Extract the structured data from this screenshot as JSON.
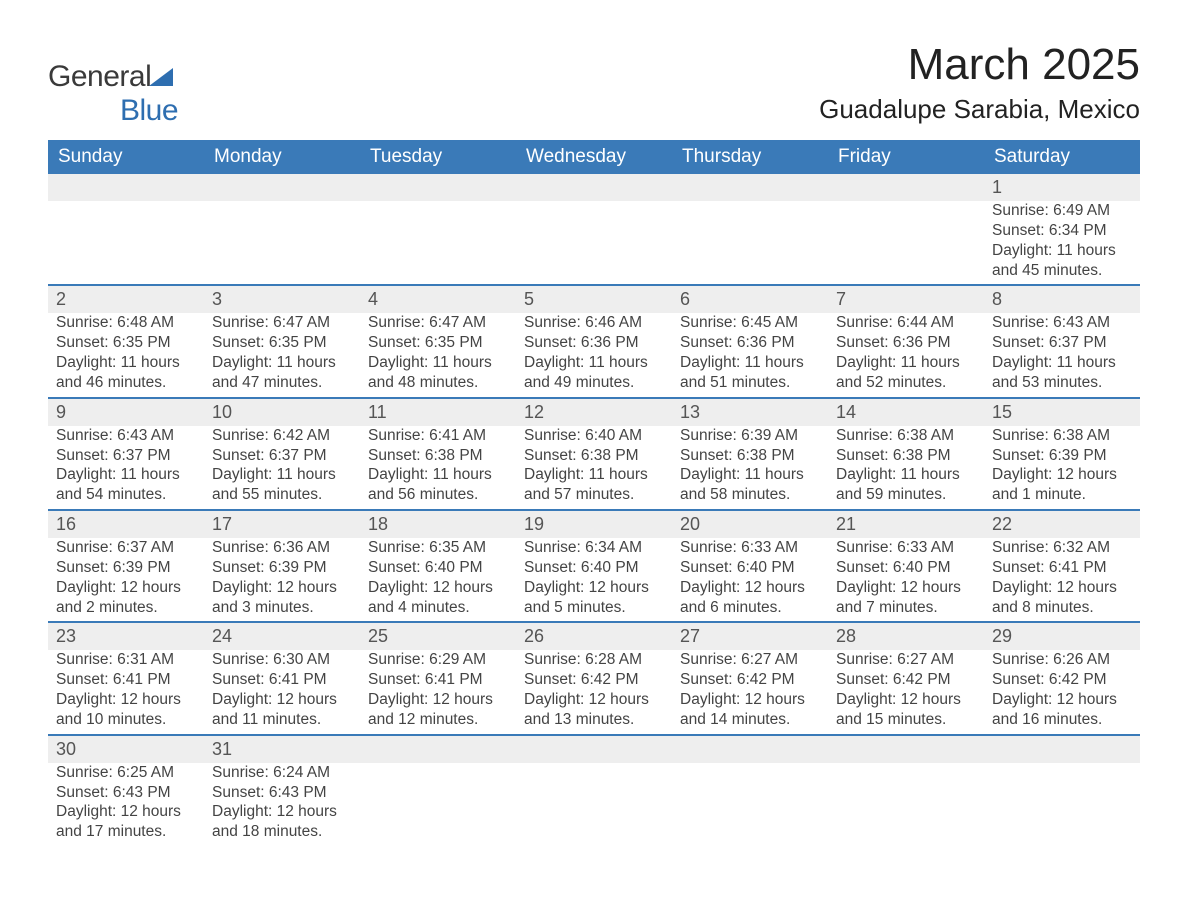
{
  "logo": {
    "general": "General",
    "blue": "Blue"
  },
  "title": {
    "month": "March 2025",
    "location": "Guadalupe Sarabia, Mexico"
  },
  "calendar": {
    "header_bg": "#3a7ab8",
    "header_text_color": "#ffffff",
    "daynum_bg": "#eeeeee",
    "row_divider_color": "#3a7ab8",
    "body_bg": "#ffffff",
    "text_color": "#444444",
    "columns": [
      "Sunday",
      "Monday",
      "Tuesday",
      "Wednesday",
      "Thursday",
      "Friday",
      "Saturday"
    ],
    "weeks": [
      [
        null,
        null,
        null,
        null,
        null,
        null,
        {
          "n": "1",
          "sr": "Sunrise: 6:49 AM",
          "ss": "Sunset: 6:34 PM",
          "d1": "Daylight: 11 hours",
          "d2": "and 45 minutes."
        }
      ],
      [
        {
          "n": "2",
          "sr": "Sunrise: 6:48 AM",
          "ss": "Sunset: 6:35 PM",
          "d1": "Daylight: 11 hours",
          "d2": "and 46 minutes."
        },
        {
          "n": "3",
          "sr": "Sunrise: 6:47 AM",
          "ss": "Sunset: 6:35 PM",
          "d1": "Daylight: 11 hours",
          "d2": "and 47 minutes."
        },
        {
          "n": "4",
          "sr": "Sunrise: 6:47 AM",
          "ss": "Sunset: 6:35 PM",
          "d1": "Daylight: 11 hours",
          "d2": "and 48 minutes."
        },
        {
          "n": "5",
          "sr": "Sunrise: 6:46 AM",
          "ss": "Sunset: 6:36 PM",
          "d1": "Daylight: 11 hours",
          "d2": "and 49 minutes."
        },
        {
          "n": "6",
          "sr": "Sunrise: 6:45 AM",
          "ss": "Sunset: 6:36 PM",
          "d1": "Daylight: 11 hours",
          "d2": "and 51 minutes."
        },
        {
          "n": "7",
          "sr": "Sunrise: 6:44 AM",
          "ss": "Sunset: 6:36 PM",
          "d1": "Daylight: 11 hours",
          "d2": "and 52 minutes."
        },
        {
          "n": "8",
          "sr": "Sunrise: 6:43 AM",
          "ss": "Sunset: 6:37 PM",
          "d1": "Daylight: 11 hours",
          "d2": "and 53 minutes."
        }
      ],
      [
        {
          "n": "9",
          "sr": "Sunrise: 6:43 AM",
          "ss": "Sunset: 6:37 PM",
          "d1": "Daylight: 11 hours",
          "d2": "and 54 minutes."
        },
        {
          "n": "10",
          "sr": "Sunrise: 6:42 AM",
          "ss": "Sunset: 6:37 PM",
          "d1": "Daylight: 11 hours",
          "d2": "and 55 minutes."
        },
        {
          "n": "11",
          "sr": "Sunrise: 6:41 AM",
          "ss": "Sunset: 6:38 PM",
          "d1": "Daylight: 11 hours",
          "d2": "and 56 minutes."
        },
        {
          "n": "12",
          "sr": "Sunrise: 6:40 AM",
          "ss": "Sunset: 6:38 PM",
          "d1": "Daylight: 11 hours",
          "d2": "and 57 minutes."
        },
        {
          "n": "13",
          "sr": "Sunrise: 6:39 AM",
          "ss": "Sunset: 6:38 PM",
          "d1": "Daylight: 11 hours",
          "d2": "and 58 minutes."
        },
        {
          "n": "14",
          "sr": "Sunrise: 6:38 AM",
          "ss": "Sunset: 6:38 PM",
          "d1": "Daylight: 11 hours",
          "d2": "and 59 minutes."
        },
        {
          "n": "15",
          "sr": "Sunrise: 6:38 AM",
          "ss": "Sunset: 6:39 PM",
          "d1": "Daylight: 12 hours",
          "d2": "and 1 minute."
        }
      ],
      [
        {
          "n": "16",
          "sr": "Sunrise: 6:37 AM",
          "ss": "Sunset: 6:39 PM",
          "d1": "Daylight: 12 hours",
          "d2": "and 2 minutes."
        },
        {
          "n": "17",
          "sr": "Sunrise: 6:36 AM",
          "ss": "Sunset: 6:39 PM",
          "d1": "Daylight: 12 hours",
          "d2": "and 3 minutes."
        },
        {
          "n": "18",
          "sr": "Sunrise: 6:35 AM",
          "ss": "Sunset: 6:40 PM",
          "d1": "Daylight: 12 hours",
          "d2": "and 4 minutes."
        },
        {
          "n": "19",
          "sr": "Sunrise: 6:34 AM",
          "ss": "Sunset: 6:40 PM",
          "d1": "Daylight: 12 hours",
          "d2": "and 5 minutes."
        },
        {
          "n": "20",
          "sr": "Sunrise: 6:33 AM",
          "ss": "Sunset: 6:40 PM",
          "d1": "Daylight: 12 hours",
          "d2": "and 6 minutes."
        },
        {
          "n": "21",
          "sr": "Sunrise: 6:33 AM",
          "ss": "Sunset: 6:40 PM",
          "d1": "Daylight: 12 hours",
          "d2": "and 7 minutes."
        },
        {
          "n": "22",
          "sr": "Sunrise: 6:32 AM",
          "ss": "Sunset: 6:41 PM",
          "d1": "Daylight: 12 hours",
          "d2": "and 8 minutes."
        }
      ],
      [
        {
          "n": "23",
          "sr": "Sunrise: 6:31 AM",
          "ss": "Sunset: 6:41 PM",
          "d1": "Daylight: 12 hours",
          "d2": "and 10 minutes."
        },
        {
          "n": "24",
          "sr": "Sunrise: 6:30 AM",
          "ss": "Sunset: 6:41 PM",
          "d1": "Daylight: 12 hours",
          "d2": "and 11 minutes."
        },
        {
          "n": "25",
          "sr": "Sunrise: 6:29 AM",
          "ss": "Sunset: 6:41 PM",
          "d1": "Daylight: 12 hours",
          "d2": "and 12 minutes."
        },
        {
          "n": "26",
          "sr": "Sunrise: 6:28 AM",
          "ss": "Sunset: 6:42 PM",
          "d1": "Daylight: 12 hours",
          "d2": "and 13 minutes."
        },
        {
          "n": "27",
          "sr": "Sunrise: 6:27 AM",
          "ss": "Sunset: 6:42 PM",
          "d1": "Daylight: 12 hours",
          "d2": "and 14 minutes."
        },
        {
          "n": "28",
          "sr": "Sunrise: 6:27 AM",
          "ss": "Sunset: 6:42 PM",
          "d1": "Daylight: 12 hours",
          "d2": "and 15 minutes."
        },
        {
          "n": "29",
          "sr": "Sunrise: 6:26 AM",
          "ss": "Sunset: 6:42 PM",
          "d1": "Daylight: 12 hours",
          "d2": "and 16 minutes."
        }
      ],
      [
        {
          "n": "30",
          "sr": "Sunrise: 6:25 AM",
          "ss": "Sunset: 6:43 PM",
          "d1": "Daylight: 12 hours",
          "d2": "and 17 minutes."
        },
        {
          "n": "31",
          "sr": "Sunrise: 6:24 AM",
          "ss": "Sunset: 6:43 PM",
          "d1": "Daylight: 12 hours",
          "d2": "and 18 minutes."
        },
        null,
        null,
        null,
        null,
        null
      ]
    ]
  }
}
